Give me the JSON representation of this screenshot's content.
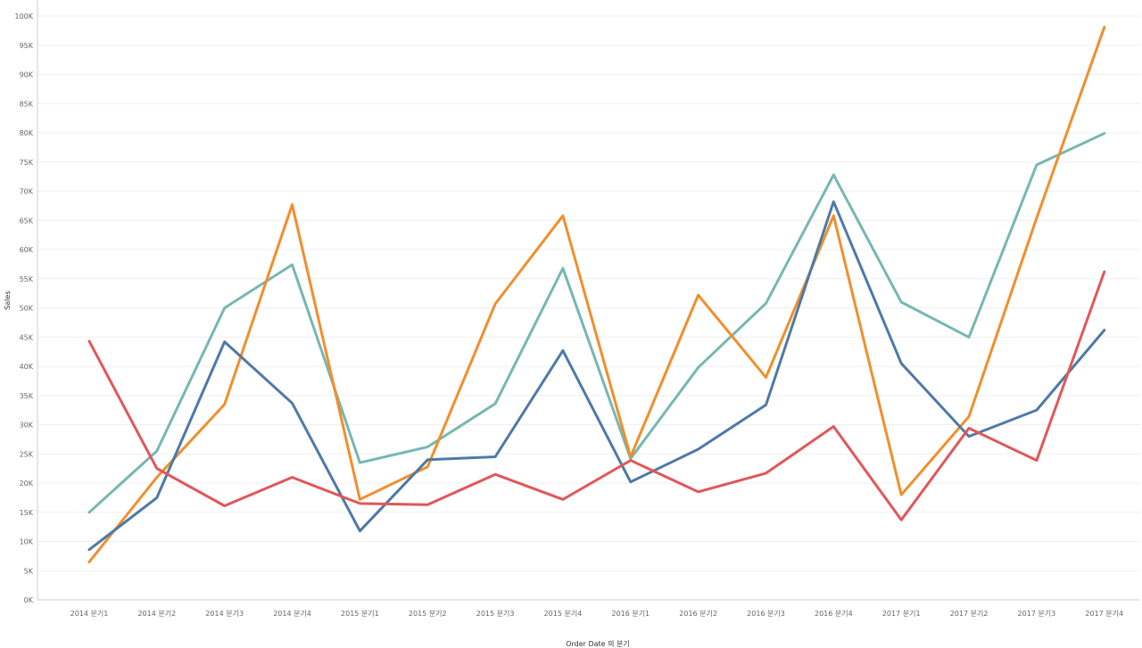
{
  "chart_data": {
    "type": "line",
    "xlabel": "Order Date 의 분기",
    "ylabel": "Sales",
    "ylim": [
      0,
      100000
    ],
    "y_ticks": [
      0,
      5000,
      10000,
      15000,
      20000,
      25000,
      30000,
      35000,
      40000,
      45000,
      50000,
      55000,
      60000,
      65000,
      70000,
      75000,
      80000,
      85000,
      90000,
      95000,
      100000
    ],
    "y_tick_labels": [
      "0K",
      "5K",
      "10K",
      "15K",
      "20K",
      "25K",
      "30K",
      "35K",
      "40K",
      "45K",
      "50K",
      "55K",
      "60K",
      "65K",
      "70K",
      "75K",
      "80K",
      "85K",
      "90K",
      "95K",
      "100K"
    ],
    "categories": [
      "2014 분기1",
      "2014 분기2",
      "2014 분기3",
      "2014 분기4",
      "2015 분기1",
      "2015 분기2",
      "2015 분기3",
      "2015 분기4",
      "2016 분기1",
      "2016 분기2",
      "2016 분기3",
      "2016 분기4",
      "2017 분기1",
      "2017 분기2",
      "2017 분기3",
      "2017 분기4"
    ],
    "grid": true,
    "legend": "none",
    "series": [
      {
        "color": "#76b7b2",
        "values": [
          15000,
          25500,
          50000,
          57400,
          23500,
          26200,
          33600,
          56800,
          24200,
          39800,
          50800,
          72800,
          51000,
          45000,
          74500,
          79900
        ]
      },
      {
        "color": "#f28e2b",
        "values": [
          6500,
          21000,
          33500,
          67700,
          17200,
          22800,
          50700,
          65800,
          24500,
          52200,
          38100,
          65800,
          18000,
          31400,
          65400,
          98100
        ]
      },
      {
        "color": "#4e79a7",
        "values": [
          8600,
          17500,
          44200,
          33700,
          11800,
          24000,
          24500,
          42700,
          20200,
          25800,
          33400,
          68200,
          40500,
          28000,
          32500,
          46200
        ]
      },
      {
        "color": "#e15759",
        "values": [
          44300,
          22500,
          16100,
          21000,
          16500,
          16300,
          21500,
          17200,
          23900,
          18500,
          21700,
          29700,
          13700,
          29400,
          23900,
          56200
        ]
      }
    ]
  }
}
